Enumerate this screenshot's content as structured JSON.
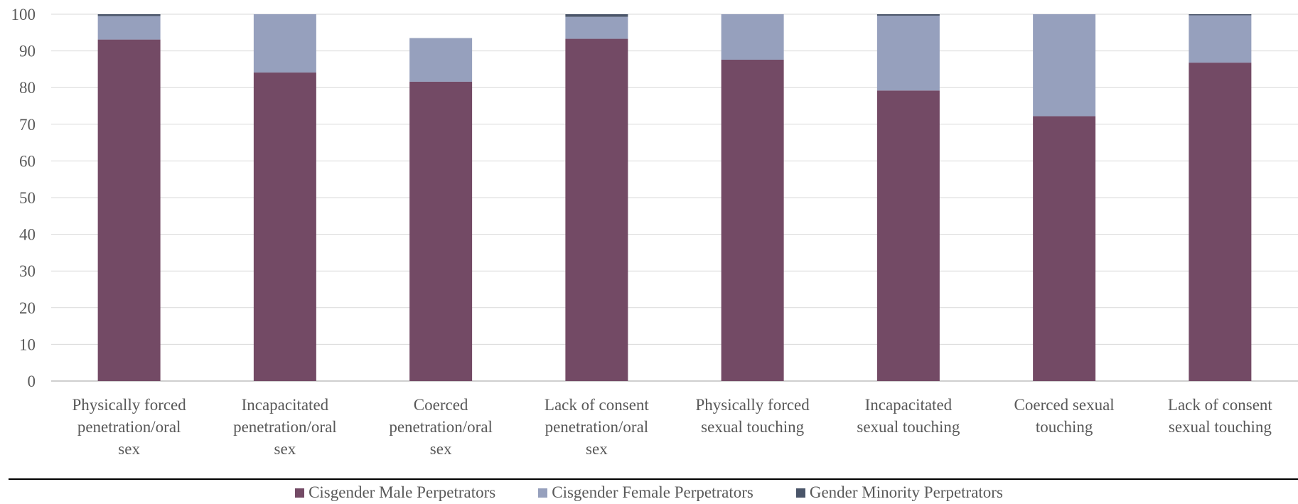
{
  "chart_data": {
    "type": "bar",
    "stacked": true,
    "categories": [
      [
        "Physically forced",
        "penetration/oral",
        "sex"
      ],
      [
        "Incapacitated",
        "penetration/oral",
        "sex"
      ],
      [
        "Coerced",
        "penetration/oral",
        "sex"
      ],
      [
        "Lack of consent",
        "penetration/oral",
        "sex"
      ],
      [
        "Physically forced",
        "sexual touching"
      ],
      [
        "Incapacitated",
        "sexual touching"
      ],
      [
        "Coerced sexual",
        "touching"
      ],
      [
        "Lack of consent",
        "sexual touching"
      ]
    ],
    "series": [
      {
        "name": "Cisgender Male Perpetrators",
        "color": "#734a65",
        "values": [
          93.1,
          84.1,
          81.6,
          93.3,
          87.6,
          79.2,
          72.2,
          86.8
        ]
      },
      {
        "name": "Cisgender Female Perpetrators",
        "color": "#96a0bd",
        "values": [
          6.4,
          15.9,
          11.9,
          6.0,
          12.4,
          20.4,
          27.8,
          12.9
        ]
      },
      {
        "name": "Gender Minority Perpetrators",
        "color": "#4a5569",
        "values": [
          0.5,
          0.0,
          0.0,
          0.7,
          0.0,
          0.4,
          0.0,
          0.3
        ]
      }
    ],
    "ylim": [
      0,
      100
    ],
    "yticks": [
      0,
      10,
      20,
      30,
      40,
      50,
      60,
      70,
      80,
      90,
      100
    ],
    "grid": true,
    "legend_position": "bottom"
  }
}
